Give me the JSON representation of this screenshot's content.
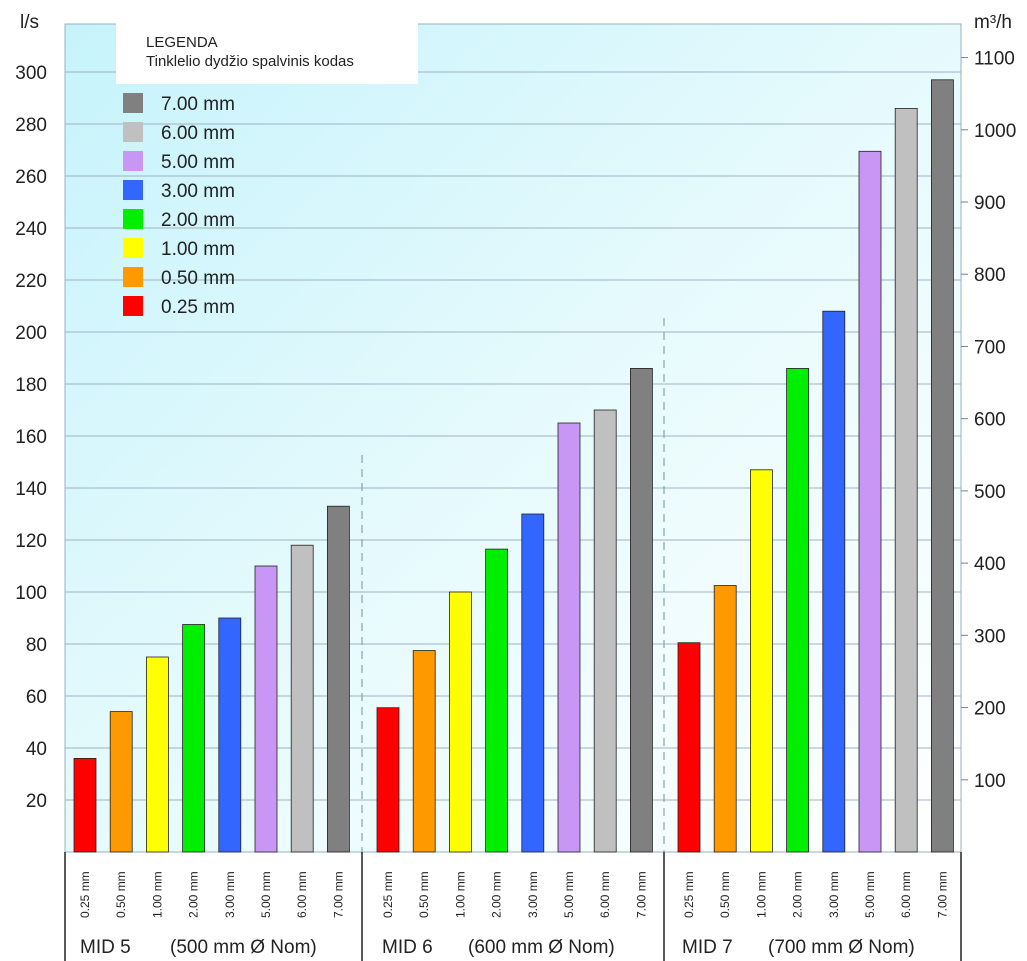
{
  "chart_data": {
    "type": "bar",
    "y_left_label": "l/s",
    "y_right_label": "m³/h",
    "y_left_ticks": [
      20,
      40,
      60,
      80,
      100,
      120,
      140,
      160,
      180,
      200,
      220,
      240,
      260,
      280,
      300
    ],
    "y_right_ticks": [
      100,
      200,
      300,
      400,
      500,
      600,
      700,
      800,
      900,
      1000,
      1100
    ],
    "ylim": [
      0,
      305
    ],
    "grid": true,
    "legend": {
      "title": "LEGENDA",
      "subtitle": "Tinklelio dydžio spalvinis kodas",
      "placement": "top-left",
      "items": [
        {
          "label": "7.00 mm",
          "color": "#808080"
        },
        {
          "label": "6.00 mm",
          "color": "#c0c0c0"
        },
        {
          "label": "5.00 mm",
          "color": "#c896f5"
        },
        {
          "label": "3.00 mm",
          "color": "#3366ff"
        },
        {
          "label": "2.00 mm",
          "color": "#00ee00"
        },
        {
          "label": "1.00 mm",
          "color": "#ffff00"
        },
        {
          "label": "0.50 mm",
          "color": "#ff9900"
        },
        {
          "label": "0.25 mm",
          "color": "#ff0000"
        }
      ]
    },
    "categories": [
      "0.25 mm",
      "0.50 mm",
      "1.00 mm",
      "2.00 mm",
      "3.00 mm",
      "5.00 mm",
      "6.00 mm",
      "7.00 mm"
    ],
    "category_colors": [
      "#ff0000",
      "#ff9900",
      "#ffff00",
      "#00ee00",
      "#3366ff",
      "#c896f5",
      "#c0c0c0",
      "#808080"
    ],
    "groups": [
      {
        "name": "MID 5",
        "size_label": "(500 mm Ø Nom)",
        "values": [
          36,
          54,
          75,
          87.5,
          90,
          110,
          118,
          133
        ]
      },
      {
        "name": "MID 6",
        "size_label": "(600 mm Ø Nom)",
        "values": [
          55.5,
          77.5,
          100,
          116.5,
          130,
          165,
          170,
          186
        ]
      },
      {
        "name": "MID 7",
        "size_label": "(700 mm Ø Nom)",
        "values": [
          80.5,
          102.5,
          147,
          186,
          208,
          269.5,
          286,
          297
        ]
      }
    ]
  }
}
